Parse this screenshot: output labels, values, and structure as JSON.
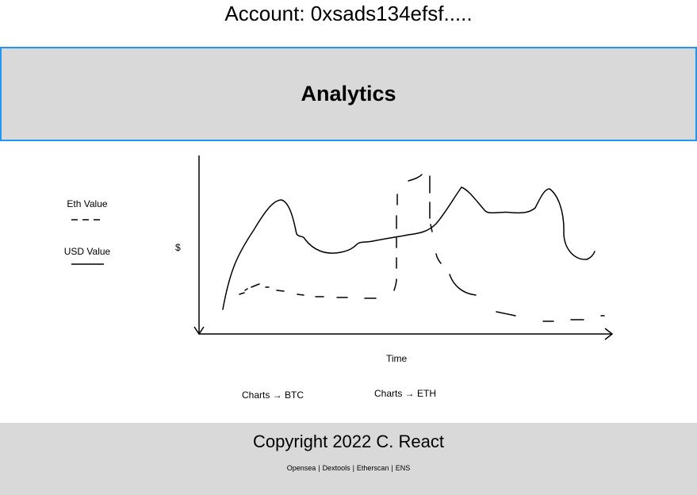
{
  "header": {
    "account_title": "Account: 0xsads134efsf....."
  },
  "banner": {
    "title": "Analytics"
  },
  "chart": {
    "ylabel": "$",
    "xlabel": "Time",
    "legend": {
      "eth_label": "Eth Value",
      "usd_label": "USD Value"
    }
  },
  "chart_links": {
    "btc": "Charts → BTC",
    "eth": "Charts → ETH"
  },
  "footer": {
    "copyright": "Copyright 2022 C. React",
    "links": [
      "Opensea",
      "Dextools",
      "Etherscan",
      "ENS"
    ]
  },
  "chart_data": {
    "type": "line",
    "ylabel": "$",
    "xlabel": "Time",
    "series": [
      {
        "name": "Eth Value",
        "style": "dashed"
      },
      {
        "name": "USD Value",
        "style": "solid"
      }
    ],
    "legend_position": "left",
    "grid": false
  }
}
